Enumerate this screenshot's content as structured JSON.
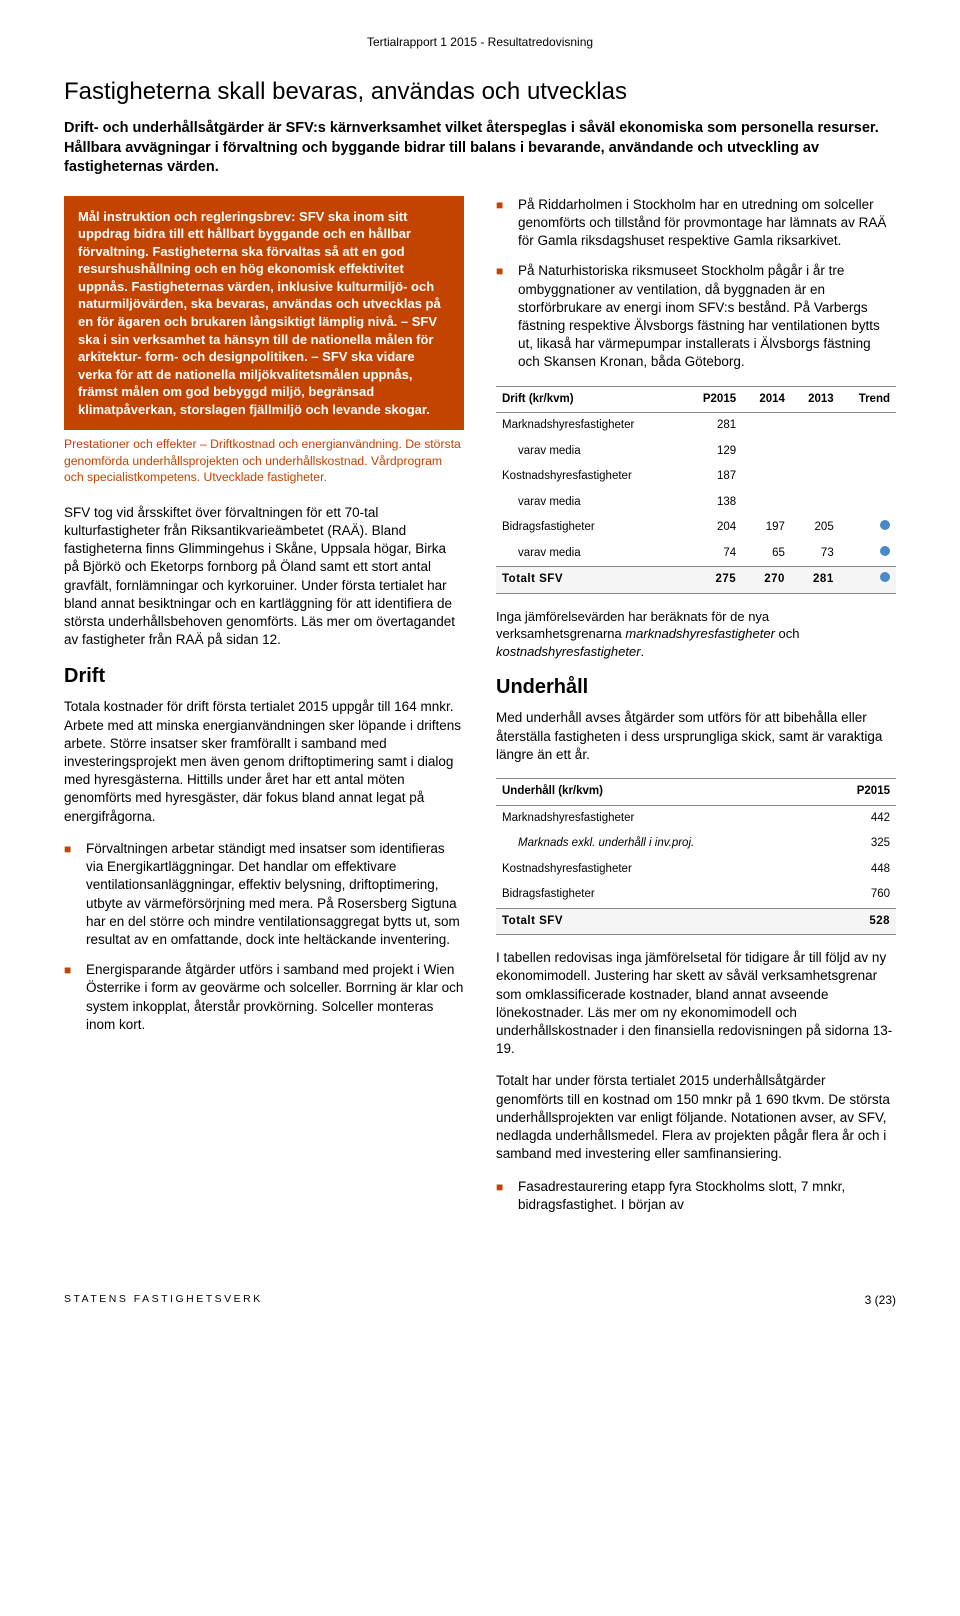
{
  "colors": {
    "accent": "#c24400",
    "text": "#000000",
    "background": "#ffffff",
    "trend_dot": "#4a88c7",
    "table_border": "#888888"
  },
  "typography": {
    "title_fontsize_pt": 18,
    "lead_fontsize_pt": 11,
    "body_fontsize_pt": 10,
    "section_fontsize_pt": 15
  },
  "header": "Tertialrapport 1 2015 - Resultatredovisning",
  "title": "Fastigheterna skall bevaras, användas och utvecklas",
  "lead": "Drift- och underhållsåtgärder är SFV:s kärnverksamhet vilket återspeglas i såväl ekonomiska som personella resurser. Hållbara avvägningar i förvaltning och byggande bidrar till balans i bevarande, användande och utveckling av fastigheternas värden.",
  "highlight_box": "Mål instruktion och regleringsbrev: SFV ska inom sitt uppdrag bidra till ett hållbart byggande och en hållbar förvaltning. Fastigheterna ska förvaltas så att en god resurshushållning och en hög ekonomisk effektivitet uppnås. Fastigheternas värden, inklusive kulturmiljö- och naturmiljövärden, ska bevaras, användas och utvecklas på en för ägaren och brukaren långsiktigt lämplig nivå. – SFV ska i sin verksamhet ta hänsyn till de nationella målen för arkitektur- form- och designpolitiken. – SFV ska vidare verka för att de nationella miljökvalitetsmålen uppnås, främst målen om god bebyggd miljö, begränsad klimatpåverkan, storslagen fjällmiljö och levande skogar.",
  "highlight_caption": "Prestationer och effekter – Driftkostnad och energianvändning. De största genomförda underhållsprojekten och underhållskostnad. Vårdprogram och specialistkompetens. Utvecklade fastigheter.",
  "left_p1": "SFV tog vid årsskiftet över förvaltningen för ett 70-tal kulturfastigheter från Riksantikvarieämbetet (RAÄ). Bland fastigheterna finns Glimmingehus i Skåne, Uppsala högar, Birka på Björkö och Eketorps fornborg på Öland samt ett stort antal gravfält, fornlämningar och kyrkoruiner. Under första tertialet har bland annat besiktningar och en kartläggning för att identifiera de största underhållsbehoven genomförts. Läs mer om övertagandet av fastigheter från RAÄ på sidan 12.",
  "drift_heading": "Drift",
  "drift_p1": "Totala kostnader för drift första tertialet 2015 uppgår till 164 mnkr. Arbete med att minska energianvändningen sker löpande i driftens arbete. Större insatser sker framförallt i samband med investeringsprojekt men även genom driftoptimering samt i dialog med hyresgästerna. Hittills under året har ett antal möten genomförts med hyresgäster, där fokus bland annat legat på energifrågorna.",
  "left_bullets": [
    "Förvaltningen arbetar ständigt med insatser som identifieras via Energikartläggningar. Det handlar om effektivare ventilationsanläggningar, effektiv belysning, driftoptimering, utbyte av värmeförsörjning med mera. På Rosersberg Sigtuna har en del större och mindre ventilationsaggregat bytts ut, som resultat av en omfattande, dock inte heltäckande inventering.",
    "Energisparande åtgärder utförs i samband med projekt i Wien Österrike i form av geovärme och solceller. Borrning är klar och system inkopplat, återstår provkörning. Solceller monteras inom kort."
  ],
  "right_bullets": [
    "På Riddarholmen i Stockholm har en utredning om solceller genomförts och tillstånd för provmontage har lämnats av RAÄ för Gamla riksdagshuset respektive Gamla riksarkivet.",
    "På Naturhistoriska riksmuseet Stockholm pågår i år tre ombyggnationer av ventilation, då byggnaden är en storförbrukare av energi inom SFV:s bestånd. På Varbergs fästning respektive Älvsborgs fästning har ventilationen bytts ut, likaså har värmepumpar installerats i Älvsborgs fästning och Skansen Kronan, båda Göteborg."
  ],
  "drift_table": {
    "title": "Drift (kr/kvm)",
    "columns": [
      "P2015",
      "2014",
      "2013",
      "Trend"
    ],
    "rows": [
      {
        "label": "Marknadshyresfastigheter",
        "cells": [
          "281",
          "",
          "",
          ""
        ]
      },
      {
        "label": "varav media",
        "indent": true,
        "cells": [
          "129",
          "",
          "",
          ""
        ]
      },
      {
        "label": "Kostnadshyresfastigheter",
        "cells": [
          "187",
          "",
          "",
          ""
        ]
      },
      {
        "label": "varav media",
        "indent": true,
        "cells": [
          "138",
          "",
          "",
          ""
        ]
      },
      {
        "label": "Bidragsfastigheter",
        "cells": [
          "204",
          "197",
          "205",
          "dot"
        ]
      },
      {
        "label": "varav media",
        "indent": true,
        "cells": [
          "74",
          "65",
          "73",
          "dot"
        ]
      }
    ],
    "total": {
      "label": "Totalt SFV",
      "cells": [
        "275",
        "270",
        "281",
        "dot"
      ]
    }
  },
  "drift_table_note_pre": "Inga jämförelsevärden har beräknats för de nya verksamhetsgrenarna ",
  "drift_table_note_em1": "marknadshyresfastigheter",
  "drift_table_note_mid": " och ",
  "drift_table_note_em2": "kostnadshyresfastigheter",
  "drift_table_note_post": ".",
  "underhall_heading": "Underhåll",
  "underhall_p1": "Med underhåll avses åtgärder som utförs för att bibehålla eller återställa fastigheten i dess ursprungliga skick, samt är varaktiga längre än ett år.",
  "underhall_table": {
    "title": "Underhåll (kr/kvm)",
    "columns": [
      "P2015"
    ],
    "rows": [
      {
        "label": "Marknadshyresfastigheter",
        "cells": [
          "442"
        ]
      },
      {
        "label": "Marknads exkl. underhåll i inv.proj.",
        "indent": true,
        "italic": true,
        "cells": [
          "325"
        ]
      },
      {
        "label": "Kostnadshyresfastigheter",
        "cells": [
          "448"
        ]
      },
      {
        "label": "Bidragsfastigheter",
        "cells": [
          "760"
        ]
      }
    ],
    "total": {
      "label": "Totalt SFV",
      "cells": [
        "528"
      ]
    }
  },
  "underhall_p2": "I tabellen redovisas inga jämförelsetal för tidigare år till följd av ny ekonomimodell. Justering har skett av såväl verksamhetsgrenar som omklassificerade kostnader, bland annat avseende lönekostnader. Läs mer om ny ekonomimodell och underhållskostnader i den finansiella redovisningen på sidorna 13-19.",
  "underhall_p3": "Totalt har under första tertialet 2015 underhållsåtgärder genomförts till en kostnad om 150 mnkr på 1 690 tkvm. De största underhållsprojekten var enligt följande. Notationen avser, av SFV, nedlagda underhållsmedel. Flera av projekten pågår flera år och i samband med investering eller samfinansiering.",
  "underhall_bullets": [
    "Fasadrestaurering etapp fyra Stockholms slott, 7 mnkr, bidragsfastighet. I början av"
  ],
  "footer_left": "STATENS FASTIGHETSVERK",
  "footer_right": "3 (23)"
}
